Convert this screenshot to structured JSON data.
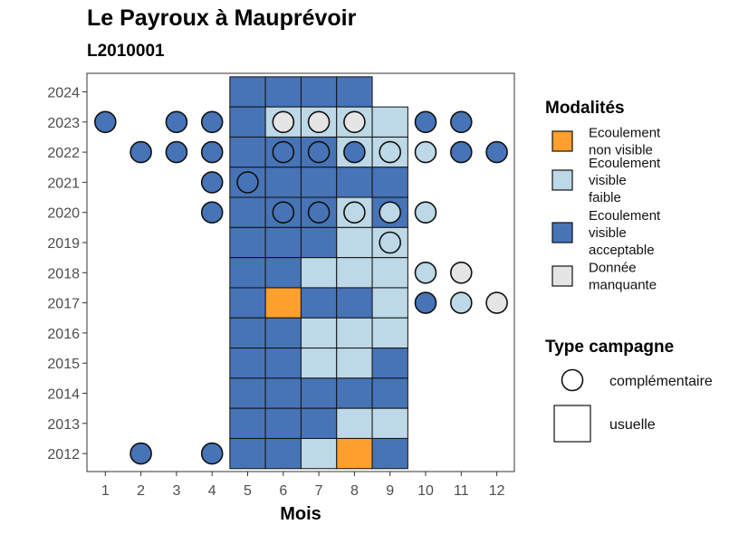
{
  "title": "Le Payroux à Mauprévoir",
  "subtitle": "L2010001",
  "colors": {
    "ecoulement_non_visible": "#FF9F2D",
    "ecoulement_visible_faible": "#BDD8E6",
    "ecoulement_visible_acceptable": "#4674B7",
    "donnee_manquante": "#E5E5E5"
  },
  "legend": {
    "modalites_title": "Modalités",
    "modalites": [
      {
        "key": "ecoulement_non_visible",
        "lines": [
          "Ecoulement",
          "non visible"
        ]
      },
      {
        "key": "ecoulement_visible_faible",
        "lines": [
          "Ecoulement",
          "visible",
          "faible"
        ]
      },
      {
        "key": "ecoulement_visible_acceptable",
        "lines": [
          "Ecoulement",
          "visible",
          "acceptable"
        ]
      },
      {
        "key": "donnee_manquante",
        "lines": [
          "Donnée",
          "manquante"
        ]
      }
    ],
    "campagne_title": "Type campagne",
    "campagne": [
      {
        "key": "complementaire",
        "label": "complémentaire"
      },
      {
        "key": "usuelle",
        "label": "usuelle"
      }
    ]
  },
  "chart_data": {
    "type": "heatmap",
    "title": "Le Payroux à Mauprévoir",
    "subtitle": "L2010001",
    "xlabel": "Mois",
    "ylabel": "",
    "x_ticks": [
      "1",
      "2",
      "3",
      "4",
      "5",
      "6",
      "7",
      "8",
      "9",
      "10",
      "11",
      "12"
    ],
    "y_ticks": [
      "2012",
      "2013",
      "2014",
      "2015",
      "2016",
      "2017",
      "2018",
      "2019",
      "2020",
      "2021",
      "2022",
      "2023",
      "2024"
    ],
    "grid": false,
    "legend_position": "right",
    "tiles_usuelle": [
      {
        "year": 2024,
        "month": 5,
        "state": "ecoulement_visible_acceptable"
      },
      {
        "year": 2024,
        "month": 6,
        "state": "ecoulement_visible_acceptable"
      },
      {
        "year": 2024,
        "month": 7,
        "state": "ecoulement_visible_acceptable"
      },
      {
        "year": 2024,
        "month": 8,
        "state": "ecoulement_visible_acceptable"
      },
      {
        "year": 2023,
        "month": 5,
        "state": "ecoulement_visible_acceptable"
      },
      {
        "year": 2023,
        "month": 6,
        "state": "ecoulement_visible_faible"
      },
      {
        "year": 2023,
        "month": 7,
        "state": "ecoulement_visible_faible"
      },
      {
        "year": 2023,
        "month": 8,
        "state": "ecoulement_visible_faible"
      },
      {
        "year": 2023,
        "month": 9,
        "state": "ecoulement_visible_faible"
      },
      {
        "year": 2022,
        "month": 5,
        "state": "ecoulement_visible_acceptable"
      },
      {
        "year": 2022,
        "month": 6,
        "state": "ecoulement_visible_acceptable"
      },
      {
        "year": 2022,
        "month": 7,
        "state": "ecoulement_visible_acceptable"
      },
      {
        "year": 2022,
        "month": 8,
        "state": "ecoulement_visible_faible"
      },
      {
        "year": 2022,
        "month": 9,
        "state": "ecoulement_visible_faible"
      },
      {
        "year": 2021,
        "month": 5,
        "state": "ecoulement_visible_acceptable"
      },
      {
        "year": 2021,
        "month": 6,
        "state": "ecoulement_visible_acceptable"
      },
      {
        "year": 2021,
        "month": 7,
        "state": "ecoulement_visible_acceptable"
      },
      {
        "year": 2021,
        "month": 8,
        "state": "ecoulement_visible_acceptable"
      },
      {
        "year": 2021,
        "month": 9,
        "state": "ecoulement_visible_acceptable"
      },
      {
        "year": 2020,
        "month": 5,
        "state": "ecoulement_visible_acceptable"
      },
      {
        "year": 2020,
        "month": 6,
        "state": "ecoulement_visible_acceptable"
      },
      {
        "year": 2020,
        "month": 7,
        "state": "ecoulement_visible_acceptable"
      },
      {
        "year": 2020,
        "month": 8,
        "state": "ecoulement_visible_faible"
      },
      {
        "year": 2020,
        "month": 9,
        "state": "ecoulement_visible_acceptable"
      },
      {
        "year": 2019,
        "month": 5,
        "state": "ecoulement_visible_acceptable"
      },
      {
        "year": 2019,
        "month": 6,
        "state": "ecoulement_visible_acceptable"
      },
      {
        "year": 2019,
        "month": 7,
        "state": "ecoulement_visible_acceptable"
      },
      {
        "year": 2019,
        "month": 8,
        "state": "ecoulement_visible_faible"
      },
      {
        "year": 2019,
        "month": 9,
        "state": "ecoulement_visible_faible"
      },
      {
        "year": 2018,
        "month": 5,
        "state": "ecoulement_visible_acceptable"
      },
      {
        "year": 2018,
        "month": 6,
        "state": "ecoulement_visible_acceptable"
      },
      {
        "year": 2018,
        "month": 7,
        "state": "ecoulement_visible_faible"
      },
      {
        "year": 2018,
        "month": 8,
        "state": "ecoulement_visible_faible"
      },
      {
        "year": 2018,
        "month": 9,
        "state": "ecoulement_visible_faible"
      },
      {
        "year": 2017,
        "month": 5,
        "state": "ecoulement_visible_acceptable"
      },
      {
        "year": 2017,
        "month": 6,
        "state": "ecoulement_non_visible"
      },
      {
        "year": 2017,
        "month": 7,
        "state": "ecoulement_visible_acceptable"
      },
      {
        "year": 2017,
        "month": 8,
        "state": "ecoulement_visible_acceptable"
      },
      {
        "year": 2017,
        "month": 9,
        "state": "ecoulement_visible_faible"
      },
      {
        "year": 2016,
        "month": 5,
        "state": "ecoulement_visible_acceptable"
      },
      {
        "year": 2016,
        "month": 6,
        "state": "ecoulement_visible_acceptable"
      },
      {
        "year": 2016,
        "month": 7,
        "state": "ecoulement_visible_faible"
      },
      {
        "year": 2016,
        "month": 8,
        "state": "ecoulement_visible_faible"
      },
      {
        "year": 2016,
        "month": 9,
        "state": "ecoulement_visible_faible"
      },
      {
        "year": 2015,
        "month": 5,
        "state": "ecoulement_visible_acceptable"
      },
      {
        "year": 2015,
        "month": 6,
        "state": "ecoulement_visible_acceptable"
      },
      {
        "year": 2015,
        "month": 7,
        "state": "ecoulement_visible_faible"
      },
      {
        "year": 2015,
        "month": 8,
        "state": "ecoulement_visible_faible"
      },
      {
        "year": 2015,
        "month": 9,
        "state": "ecoulement_visible_acceptable"
      },
      {
        "year": 2014,
        "month": 5,
        "state": "ecoulement_visible_acceptable"
      },
      {
        "year": 2014,
        "month": 6,
        "state": "ecoulement_visible_acceptable"
      },
      {
        "year": 2014,
        "month": 7,
        "state": "ecoulement_visible_acceptable"
      },
      {
        "year": 2014,
        "month": 8,
        "state": "ecoulement_visible_acceptable"
      },
      {
        "year": 2014,
        "month": 9,
        "state": "ecoulement_visible_acceptable"
      },
      {
        "year": 2013,
        "month": 5,
        "state": "ecoulement_visible_acceptable"
      },
      {
        "year": 2013,
        "month": 6,
        "state": "ecoulement_visible_acceptable"
      },
      {
        "year": 2013,
        "month": 7,
        "state": "ecoulement_visible_acceptable"
      },
      {
        "year": 2013,
        "month": 8,
        "state": "ecoulement_visible_faible"
      },
      {
        "year": 2013,
        "month": 9,
        "state": "ecoulement_visible_faible"
      },
      {
        "year": 2012,
        "month": 5,
        "state": "ecoulement_visible_acceptable"
      },
      {
        "year": 2012,
        "month": 6,
        "state": "ecoulement_visible_acceptable"
      },
      {
        "year": 2012,
        "month": 7,
        "state": "ecoulement_visible_faible"
      },
      {
        "year": 2012,
        "month": 8,
        "state": "ecoulement_non_visible"
      },
      {
        "year": 2012,
        "month": 9,
        "state": "ecoulement_visible_acceptable"
      }
    ],
    "points_complementaire": [
      {
        "year": 2023,
        "month": 1,
        "state": "ecoulement_visible_acceptable"
      },
      {
        "year": 2023,
        "month": 3,
        "state": "ecoulement_visible_acceptable"
      },
      {
        "year": 2023,
        "month": 4,
        "state": "ecoulement_visible_acceptable"
      },
      {
        "year": 2023,
        "month": 6,
        "state": "donnee_manquante"
      },
      {
        "year": 2023,
        "month": 7,
        "state": "donnee_manquante"
      },
      {
        "year": 2023,
        "month": 8,
        "state": "donnee_manquante"
      },
      {
        "year": 2023,
        "month": 10,
        "state": "ecoulement_visible_acceptable"
      },
      {
        "year": 2023,
        "month": 11,
        "state": "ecoulement_visible_acceptable"
      },
      {
        "year": 2022,
        "month": 2,
        "state": "ecoulement_visible_acceptable"
      },
      {
        "year": 2022,
        "month": 3,
        "state": "ecoulement_visible_acceptable"
      },
      {
        "year": 2022,
        "month": 4,
        "state": "ecoulement_visible_acceptable"
      },
      {
        "year": 2022,
        "month": 6,
        "state": "ecoulement_visible_acceptable"
      },
      {
        "year": 2022,
        "month": 7,
        "state": "ecoulement_visible_acceptable"
      },
      {
        "year": 2022,
        "month": 8,
        "state": "ecoulement_visible_acceptable"
      },
      {
        "year": 2022,
        "month": 9,
        "state": "ecoulement_visible_faible"
      },
      {
        "year": 2022,
        "month": 10,
        "state": "ecoulement_visible_faible"
      },
      {
        "year": 2022,
        "month": 11,
        "state": "ecoulement_visible_acceptable"
      },
      {
        "year": 2022,
        "month": 12,
        "state": "ecoulement_visible_acceptable"
      },
      {
        "year": 2021,
        "month": 4,
        "state": "ecoulement_visible_acceptable"
      },
      {
        "year": 2021,
        "month": 5,
        "state": "ecoulement_visible_acceptable"
      },
      {
        "year": 2020,
        "month": 4,
        "state": "ecoulement_visible_acceptable"
      },
      {
        "year": 2020,
        "month": 6,
        "state": "ecoulement_visible_acceptable"
      },
      {
        "year": 2020,
        "month": 7,
        "state": "ecoulement_visible_acceptable"
      },
      {
        "year": 2020,
        "month": 8,
        "state": "ecoulement_visible_faible"
      },
      {
        "year": 2020,
        "month": 9,
        "state": "ecoulement_visible_faible"
      },
      {
        "year": 2020,
        "month": 10,
        "state": "ecoulement_visible_faible"
      },
      {
        "year": 2019,
        "month": 9,
        "state": "ecoulement_visible_faible"
      },
      {
        "year": 2018,
        "month": 10,
        "state": "ecoulement_visible_faible"
      },
      {
        "year": 2018,
        "month": 11,
        "state": "donnee_manquante"
      },
      {
        "year": 2017,
        "month": 10,
        "state": "ecoulement_visible_acceptable"
      },
      {
        "year": 2017,
        "month": 11,
        "state": "ecoulement_visible_faible"
      },
      {
        "year": 2017,
        "month": 12,
        "state": "donnee_manquante"
      },
      {
        "year": 2012,
        "month": 2,
        "state": "ecoulement_visible_acceptable"
      },
      {
        "year": 2012,
        "month": 4,
        "state": "ecoulement_visible_acceptable"
      }
    ]
  }
}
